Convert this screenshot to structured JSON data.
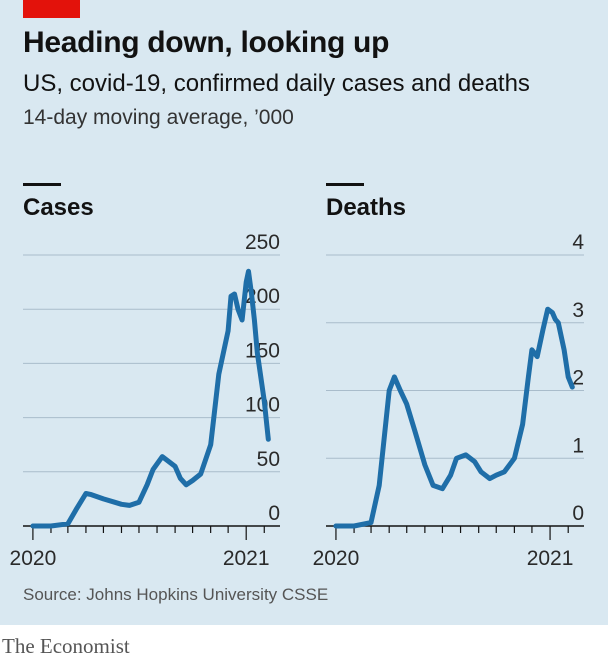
{
  "header": {
    "title": "Heading down, looking up",
    "subtitle": "US, covid-19, confirmed daily cases and deaths",
    "note": "14-day moving average, ’000"
  },
  "footer": {
    "source": "Source: Johns Hopkins University CSSE",
    "brand": "The Economist"
  },
  "colors": {
    "background": "#d9e8f1",
    "line": "#1f6ea8",
    "grid": "#a9bccb",
    "accent": "#e3120b"
  },
  "chart_data": [
    {
      "type": "line",
      "title": "Cases",
      "ylim": [
        0,
        250
      ],
      "yticks": [
        0,
        50,
        100,
        150,
        200,
        250
      ],
      "xticks": [
        "2020",
        "2021"
      ],
      "xlim": [
        "2019-12-15",
        "2021-02-28"
      ],
      "grid": true,
      "series": [
        {
          "x": [
            "2020-01-01",
            "2020-02-01",
            "2020-03-01",
            "2020-03-15",
            "2020-04-01",
            "2020-04-10",
            "2020-05-01",
            "2020-05-20",
            "2020-06-01",
            "2020-06-15",
            "2020-07-01",
            "2020-07-15",
            "2020-07-25",
            "2020-08-10",
            "2020-09-01",
            "2020-09-10",
            "2020-09-20",
            "2020-10-01",
            "2020-10-15",
            "2020-11-01",
            "2020-11-15",
            "2020-11-25",
            "2020-12-01",
            "2020-12-06",
            "2020-12-12",
            "2020-12-18",
            "2020-12-25",
            "2021-01-01",
            "2021-01-05",
            "2021-01-10",
            "2021-01-15",
            "2021-01-20",
            "2021-02-01",
            "2021-02-08"
          ],
          "values": [
            0,
            0,
            2,
            15,
            30,
            29,
            25,
            22,
            20,
            19,
            22,
            38,
            52,
            64,
            55,
            44,
            38,
            42,
            48,
            75,
            140,
            165,
            180,
            212,
            214,
            200,
            190,
            225,
            235,
            215,
            190,
            160,
            115,
            80
          ]
        }
      ]
    },
    {
      "type": "line",
      "title": "Deaths",
      "ylim": [
        0,
        4
      ],
      "yticks": [
        0,
        1,
        2,
        3,
        4
      ],
      "xticks": [
        "2020",
        "2021"
      ],
      "xlim": [
        "2019-12-15",
        "2021-02-28"
      ],
      "grid": true,
      "series": [
        {
          "x": [
            "2020-01-01",
            "2020-02-01",
            "2020-03-01",
            "2020-03-15",
            "2020-04-01",
            "2020-04-10",
            "2020-04-20",
            "2020-05-01",
            "2020-05-15",
            "2020-06-01",
            "2020-06-15",
            "2020-07-01",
            "2020-07-15",
            "2020-07-25",
            "2020-08-10",
            "2020-08-25",
            "2020-09-05",
            "2020-09-20",
            "2020-10-01",
            "2020-10-15",
            "2020-11-01",
            "2020-11-15",
            "2020-11-25",
            "2020-12-01",
            "2020-12-10",
            "2020-12-20",
            "2020-12-28",
            "2021-01-05",
            "2021-01-10",
            "2021-01-15",
            "2021-01-20",
            "2021-01-25",
            "2021-02-01",
            "2021-02-08"
          ],
          "values": [
            0,
            0,
            0.05,
            0.6,
            2.0,
            2.2,
            2.0,
            1.8,
            1.4,
            0.9,
            0.6,
            0.55,
            0.75,
            1.0,
            1.05,
            0.95,
            0.8,
            0.7,
            0.75,
            0.8,
            1.0,
            1.5,
            2.2,
            2.6,
            2.5,
            2.9,
            3.2,
            3.15,
            3.05,
            3.0,
            2.8,
            2.6,
            2.2,
            2.05
          ]
        }
      ]
    }
  ]
}
